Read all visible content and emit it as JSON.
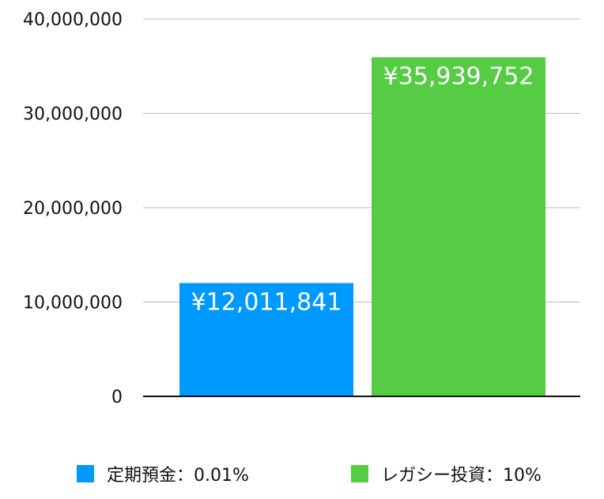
{
  "chart_data": {
    "type": "bar",
    "categories": [
      "定期預金：0.01%",
      "レガシー投資：10%"
    ],
    "values": [
      12011841,
      35939752
    ],
    "data_labels": [
      "¥12,011,841",
      "¥35,939,752"
    ],
    "colors": [
      "#0099ff",
      "#55cc44"
    ],
    "ylim": [
      0,
      40000000
    ],
    "yticks": [
      "0",
      "10,000,000",
      "20,000,000",
      "30,000,000",
      "40,000,000"
    ],
    "grid": true,
    "legend_position": "bottom",
    "title": "",
    "xlabel": "",
    "ylabel": ""
  },
  "legend": [
    {
      "label": "定期預金：0.01%",
      "color": "#0099ff"
    },
    {
      "label": "レガシー投資：10%",
      "color": "#55cc44"
    }
  ]
}
